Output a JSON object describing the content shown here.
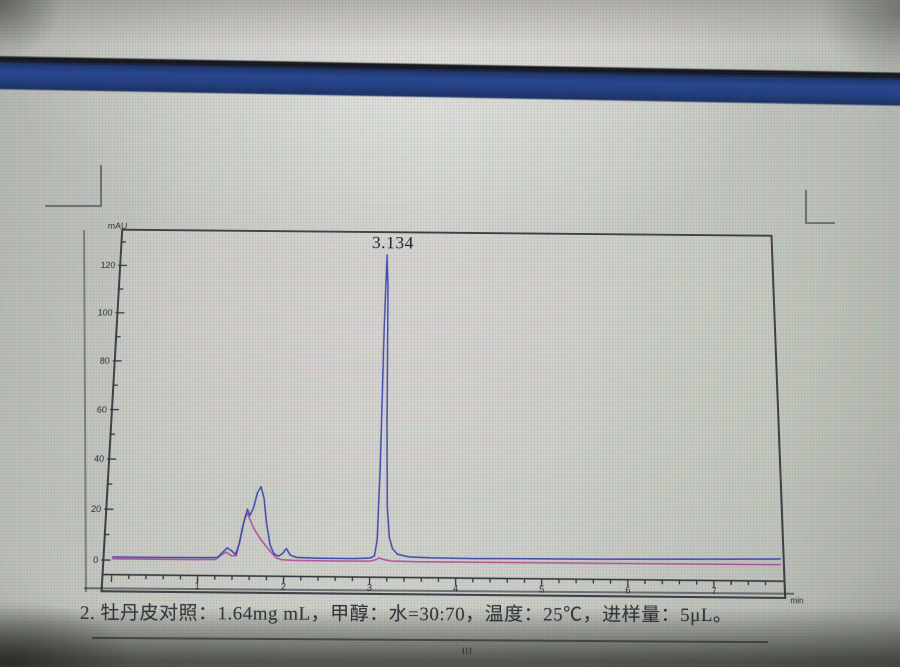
{
  "screen": {
    "titlebar_color": "#1c3a82",
    "caption": "2. 牡丹皮对照：1.64mg mL，甲醇：水=30:70，温度：25℃，进样量：5μL。",
    "page_mark": "III"
  },
  "chart_data": {
    "type": "line",
    "title": "",
    "xlabel": "min",
    "ylabel": "mAU",
    "xlim": [
      0,
      7.8
    ],
    "ylim": [
      0,
      135
    ],
    "x_ticks": [
      1,
      2,
      3,
      4,
      5,
      6,
      7
    ],
    "x_minor_step": 0.2,
    "y_ticks": [
      0,
      20,
      40,
      60,
      80,
      100,
      120
    ],
    "y_minor_step": 10,
    "grid": false,
    "legend": false,
    "peak_label": "3.134",
    "peaks": [
      {
        "retention_min": 3.134,
        "height_mAU": 125.5,
        "label": "3.134"
      },
      {
        "retention_min": 1.7,
        "height_mAU": 29.5,
        "label": ""
      },
      {
        "retention_min": 1.55,
        "height_mAU": 20.5,
        "label": ""
      }
    ],
    "series": [
      {
        "name": "signal-blue",
        "color": "#2c3ab0",
        "points": [
          [
            0,
            1.2
          ],
          [
            0.6,
            1.2
          ],
          [
            1.05,
            1.3
          ],
          [
            1.22,
            1.4
          ],
          [
            1.28,
            3.5
          ],
          [
            1.33,
            5.2
          ],
          [
            1.38,
            4.2
          ],
          [
            1.43,
            2.6
          ],
          [
            1.47,
            7
          ],
          [
            1.51,
            15
          ],
          [
            1.55,
            20.5
          ],
          [
            1.58,
            18
          ],
          [
            1.62,
            21
          ],
          [
            1.66,
            27
          ],
          [
            1.7,
            29.5
          ],
          [
            1.74,
            25
          ],
          [
            1.78,
            15
          ],
          [
            1.83,
            6.5
          ],
          [
            1.88,
            3
          ],
          [
            1.93,
            2.2
          ],
          [
            1.98,
            3.2
          ],
          [
            2.02,
            5.2
          ],
          [
            2.07,
            2.6
          ],
          [
            2.15,
            1.7
          ],
          [
            2.4,
            1.5
          ],
          [
            2.8,
            1.5
          ],
          [
            3.0,
            1.8
          ],
          [
            3.05,
            2.6
          ],
          [
            3.08,
            9
          ],
          [
            3.1,
            40
          ],
          [
            3.115,
            95
          ],
          [
            3.134,
            125.5
          ],
          [
            3.152,
            112
          ],
          [
            3.17,
            55
          ],
          [
            3.19,
            22
          ],
          [
            3.22,
            10
          ],
          [
            3.26,
            5.5
          ],
          [
            3.32,
            3.4
          ],
          [
            3.45,
            2.4
          ],
          [
            3.7,
            2.1
          ],
          [
            4.2,
            2.0
          ],
          [
            4.8,
            2.1
          ],
          [
            5.4,
            2.2
          ],
          [
            6.0,
            2.3
          ],
          [
            6.6,
            2.5
          ],
          [
            7.2,
            2.7
          ],
          [
            7.78,
            3.0
          ]
        ]
      },
      {
        "name": "signal-magenta",
        "color": "#b2449c",
        "points": [
          [
            0,
            0.5
          ],
          [
            0.9,
            0.5
          ],
          [
            1.2,
            0.6
          ],
          [
            1.27,
            2.6
          ],
          [
            1.32,
            3.6
          ],
          [
            1.38,
            2.2
          ],
          [
            1.44,
            2.2
          ],
          [
            1.48,
            9
          ],
          [
            1.52,
            16.5
          ],
          [
            1.55,
            19
          ],
          [
            1.59,
            16
          ],
          [
            1.64,
            12.5
          ],
          [
            1.7,
            9.5
          ],
          [
            1.77,
            6.5
          ],
          [
            1.84,
            3.8
          ],
          [
            1.91,
            1.4
          ],
          [
            1.97,
            0.8
          ],
          [
            2.1,
            0.6
          ],
          [
            2.6,
            0.5
          ],
          [
            3.0,
            0.6
          ],
          [
            3.06,
            1.1
          ],
          [
            3.11,
            1.9
          ],
          [
            3.15,
            1.3
          ],
          [
            3.25,
            0.7
          ],
          [
            3.6,
            0.5
          ],
          [
            4.5,
            0.55
          ],
          [
            5.5,
            0.6
          ],
          [
            6.5,
            0.65
          ],
          [
            7.78,
            0.75
          ]
        ]
      }
    ]
  }
}
